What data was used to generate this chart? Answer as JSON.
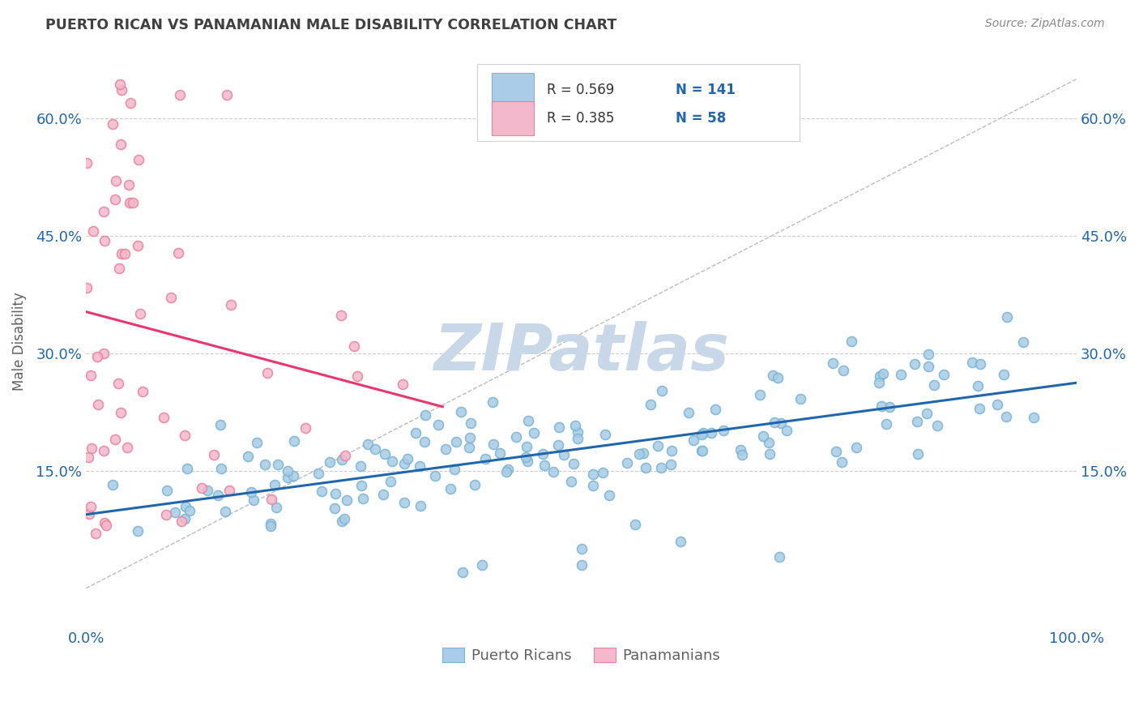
{
  "title": "PUERTO RICAN VS PANAMANIAN MALE DISABILITY CORRELATION CHART",
  "source": "Source: ZipAtlas.com",
  "ylabel": "Male Disability",
  "xlim": [
    0.0,
    1.0
  ],
  "ylim": [
    -0.05,
    0.68
  ],
  "yticks": [
    0.15,
    0.3,
    0.45,
    0.6
  ],
  "ytick_labels": [
    "15.0%",
    "30.0%",
    "45.0%",
    "60.0%"
  ],
  "xticks": [
    0.0,
    1.0
  ],
  "xtick_labels": [
    "0.0%",
    "100.0%"
  ],
  "blue_scatter_color": "#a8cce4",
  "blue_edge_color": "#7ab3d4",
  "pink_scatter_color": "#f4b8cc",
  "pink_edge_color": "#e8829e",
  "blue_line_color": "#2166ac",
  "pink_line_color": "#e8366e",
  "ref_line_color": "#bbbbbb",
  "legend_label1": "Puerto Ricans",
  "legend_label2": "Panamanians",
  "legend_sq_blue_face": "#aacce8",
  "legend_sq_blue_edge": "#7ab3d4",
  "legend_sq_pink_face": "#f4b8cc",
  "legend_sq_pink_edge": "#e8829e",
  "R_text_color": "#333333",
  "N_text_color": "#2166ac",
  "watermark": "ZIPatlas",
  "watermark_color": "#c8d8e8",
  "title_color": "#404040",
  "axis_label_color": "#606060",
  "tick_color": "#2166ac",
  "grid_color": "#cccccc",
  "background_color": "#ffffff",
  "source_color": "#888888"
}
